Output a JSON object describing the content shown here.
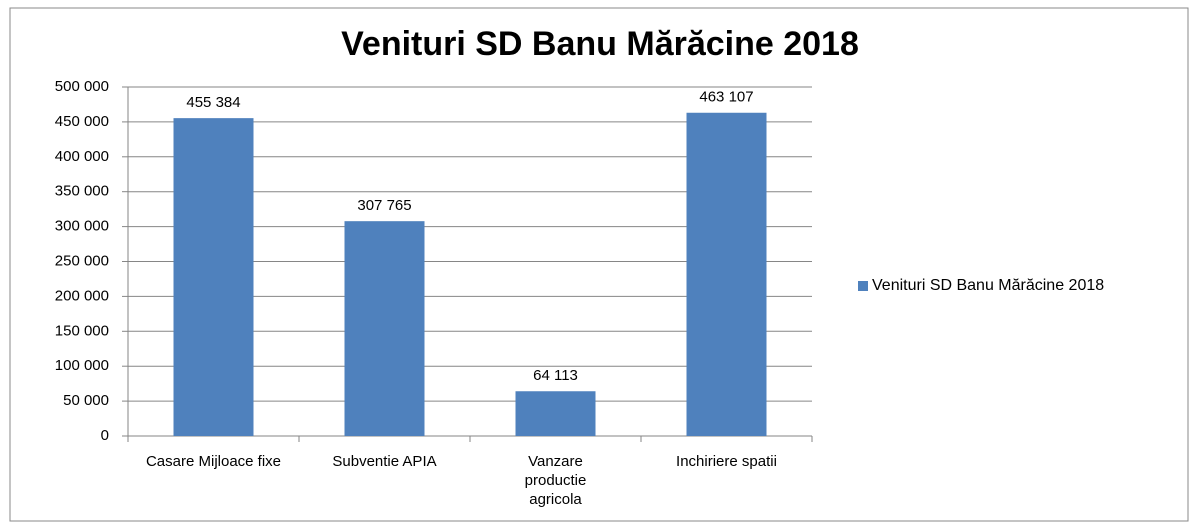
{
  "chart_data": {
    "type": "bar",
    "title": "Venituri SD Banu Mărăcine 2018",
    "categories": [
      "Casare Mijloace fixe",
      "Subventie APIA",
      "Vanzare productie agricola",
      "Inchiriere spatii"
    ],
    "series": [
      {
        "name": "Venituri SD Banu Mărăcine 2018",
        "color": "#4f81bd",
        "values": [
          455384,
          307765,
          64113,
          463107
        ],
        "value_labels": [
          "455 384",
          "307 765",
          "64 113",
          "463 107"
        ]
      }
    ],
    "ylim": [
      0,
      500000
    ],
    "yticks": [
      0,
      {
        "value": 50000,
        "label": "50 000"
      },
      {
        "value": 100000,
        "label": "100 000"
      },
      {
        "value": 150000,
        "label": "150 000"
      },
      {
        "value": 200000,
        "label": "200 000"
      },
      {
        "value": 250000,
        "label": "250 000"
      },
      {
        "value": 300000,
        "label": "300 000"
      },
      {
        "value": 350000,
        "label": "350 000"
      },
      {
        "value": 400000,
        "label": "400 000"
      },
      {
        "value": 450000,
        "label": "450 000"
      },
      {
        "value": 500000,
        "label": "500 000"
      }
    ],
    "grid": true,
    "legend": "right"
  }
}
